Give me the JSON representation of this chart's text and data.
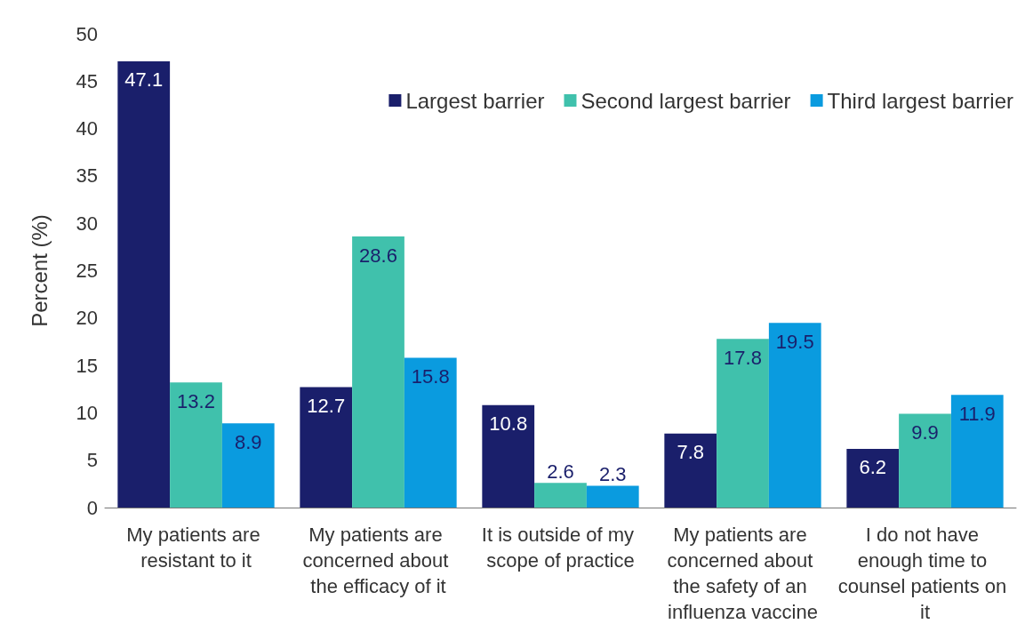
{
  "chart_data": {
    "type": "bar",
    "ylabel": "Percent (%)",
    "categories": [
      "My patients are resistant to it",
      "My patients are concerned about the efficacy of it",
      "It is outside of my scope of practice",
      "My patients are concerned about the safety of an influenza vaccine",
      "I do not have enough time to counsel patients on it"
    ],
    "series": [
      {
        "name": "Largest barrier",
        "color": "#1a1f6b",
        "values": [
          47.1,
          12.7,
          10.8,
          7.8,
          6.2
        ]
      },
      {
        "name": "Second largest barrier",
        "color": "#40c1ac",
        "values": [
          13.2,
          28.6,
          2.6,
          17.8,
          9.9
        ]
      },
      {
        "name": "Third largest barrier",
        "color": "#0a9bdf",
        "values": [
          8.9,
          15.8,
          2.3,
          19.5,
          11.9
        ]
      }
    ],
    "ylim": [
      0,
      50
    ],
    "yticks": [
      0,
      5,
      10,
      15,
      20,
      25,
      30,
      35,
      40,
      45,
      50
    ],
    "data_labels": true,
    "legend": "top right",
    "grid": false
  }
}
